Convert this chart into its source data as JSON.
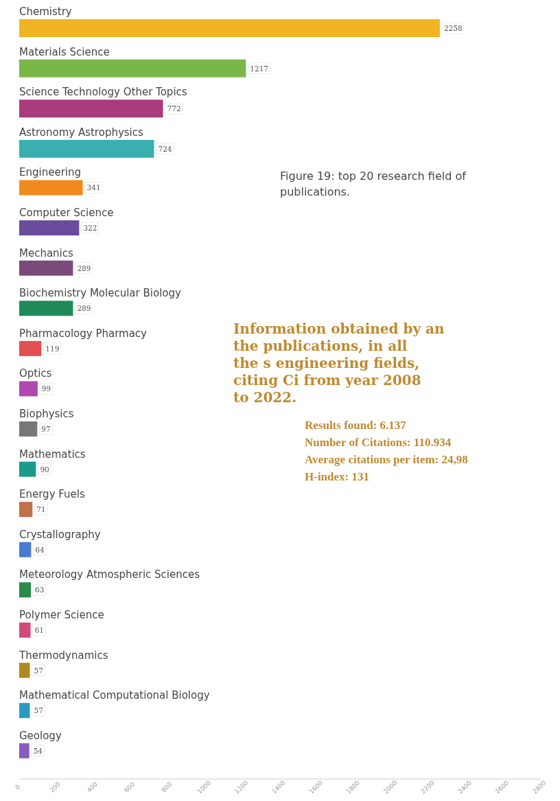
{
  "chart_data": {
    "type": "bar",
    "orientation": "horizontal",
    "title": "Figure 19: top 20 research field of publications.",
    "categories": [
      "Chemistry",
      "Materials Science",
      "Science Technology Other Topics",
      "Astronomy Astrophysics",
      "Engineering",
      "Computer Science",
      "Mechanics",
      "Biochemistry Molecular Biology",
      "Pharmacology Pharmacy",
      "Optics",
      "Biophysics",
      "Mathematics",
      "Energy Fuels",
      "Crystallography",
      "Meteorology Atmospheric Sciences",
      "Polymer Science",
      "Thermodynamics",
      "Mathematical Computational Biology",
      "Geology"
    ],
    "values": [
      2258,
      1217,
      772,
      724,
      341,
      322,
      289,
      289,
      119,
      99,
      97,
      90,
      71,
      64,
      63,
      61,
      57,
      57,
      54
    ],
    "colors": [
      "#f0b323",
      "#7ab648",
      "#a83c7c",
      "#3aafb0",
      "#f08a1e",
      "#6a4c9c",
      "#7a4a7a",
      "#1f8a5a",
      "#e05050",
      "#b04ab0",
      "#777777",
      "#1a9a8a",
      "#c0704a",
      "#4a7ad0",
      "#2a8a4a",
      "#d04a7a",
      "#b08a20",
      "#2a9ac0",
      "#8a5ac0"
    ],
    "data_labels": true,
    "xlim": [
      0,
      2800
    ],
    "xticks": [
      0,
      200,
      400,
      600,
      800,
      1000,
      1200,
      1400,
      1600,
      1800,
      2000,
      2200,
      2400,
      2600,
      2800
    ],
    "grid": false,
    "annotations": [
      "Information obtained by an the publications, in all the s engineering fields, citing Ci from year 2008 to 2022.",
      "Results found: 6.137",
      "Number of Citations: 110.934",
      "Average citations per item: 24,98",
      "H-index: 131"
    ]
  }
}
